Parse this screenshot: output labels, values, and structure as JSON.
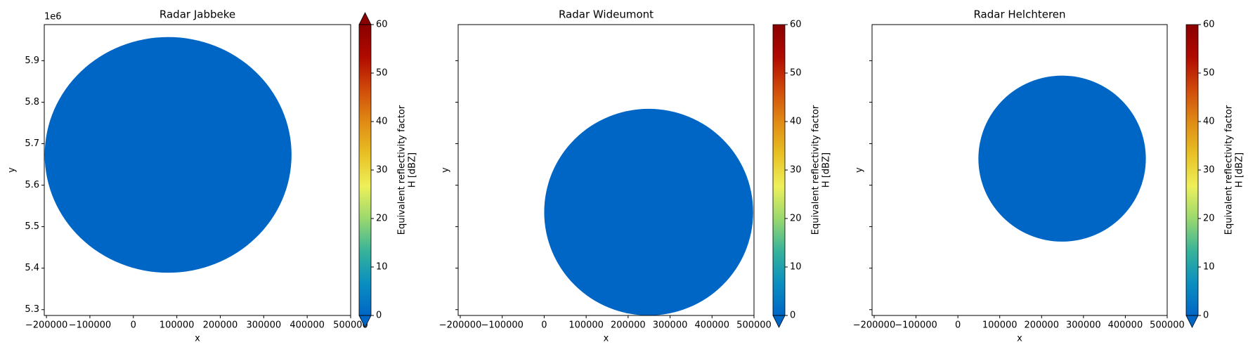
{
  "chart_data": [
    {
      "type": "ppi",
      "title": "Radar Jabbeke",
      "xlabel": "x",
      "ylabel": "y",
      "xlim": [
        -205000,
        500000
      ],
      "ylim": [
        5286000,
        5987000
      ],
      "xticks": [
        {
          "value": -200000,
          "label": "−200000"
        },
        {
          "value": -100000,
          "label": "−100000"
        },
        0,
        100000,
        200000,
        300000,
        400000,
        500000
      ],
      "yticks": [
        {
          "value": 5300000,
          "label": "5.3"
        },
        {
          "value": 5400000,
          "label": "5.4"
        },
        {
          "value": 5500000,
          "label": "5.5"
        },
        {
          "value": 5600000,
          "label": "5.6"
        },
        {
          "value": 5700000,
          "label": "5.7"
        },
        {
          "value": 5800000,
          "label": "5.8"
        },
        {
          "value": 5900000,
          "label": "5.9"
        }
      ],
      "y_offset_label": "1e6",
      "show_ytick_labels": true,
      "radar_x": 80000,
      "radar_y": 5673000,
      "radar_range": 284000,
      "colorbar_label": [
        "Equivalent reflectivity factor",
        "H [dBZ]"
      ],
      "clim": [
        0,
        60
      ],
      "cticks": [
        0,
        10,
        20,
        30,
        40,
        50,
        60
      ],
      "extend": "both"
    },
    {
      "type": "ppi",
      "title": "Radar Wideumont",
      "xlabel": "x",
      "ylabel": "y",
      "xlim": [
        -205000,
        500000
      ],
      "ylim": [
        5286000,
        5987000
      ],
      "xticks": [
        {
          "value": -200000,
          "label": "−200000"
        },
        {
          "value": -100000,
          "label": "−100000"
        },
        0,
        100000,
        200000,
        300000,
        400000,
        500000
      ],
      "yticks": [
        5300000,
        5400000,
        5500000,
        5600000,
        5700000,
        5800000,
        5900000
      ],
      "show_ytick_labels": false,
      "radar_x": 249000,
      "radar_y": 5535000,
      "radar_range": 249000,
      "colorbar_label": [
        "Equivalent reflectivity factor",
        "H [dBZ]"
      ],
      "clim": [
        0,
        60
      ],
      "cticks": [
        0,
        10,
        20,
        30,
        40,
        50,
        60
      ],
      "extend": "min"
    },
    {
      "type": "ppi",
      "title": "Radar Helchteren",
      "xlabel": "x",
      "ylabel": "y",
      "xlim": [
        -205000,
        500000
      ],
      "ylim": [
        5286000,
        5987000
      ],
      "xticks": [
        {
          "value": -200000,
          "label": "−200000"
        },
        {
          "value": -100000,
          "label": "−100000"
        },
        0,
        100000,
        200000,
        300000,
        400000,
        500000
      ],
      "yticks": [
        5300000,
        5400000,
        5500000,
        5600000,
        5700000,
        5800000,
        5900000
      ],
      "show_ytick_labels": false,
      "radar_x": 249000,
      "radar_y": 5664000,
      "radar_range": 200000,
      "colorbar_label": [
        "Equivalent reflectivity factor",
        "H [dBZ]"
      ],
      "clim": [
        0,
        60
      ],
      "cticks": [
        0,
        10,
        20,
        30,
        40,
        50,
        60
      ],
      "extend": "min"
    }
  ],
  "colormap": [
    "#0066c6",
    "#0a8fc0",
    "#38b39a",
    "#9ad86e",
    "#eef05a",
    "#e8c024",
    "#e08a14",
    "#d04a0a",
    "#b00a00",
    "#8a0000"
  ]
}
